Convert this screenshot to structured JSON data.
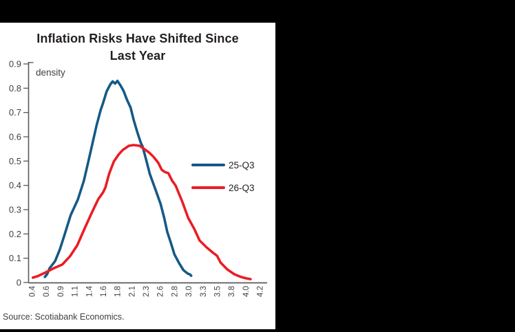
{
  "window": {
    "background_color": "#000000",
    "panel_color": "#ffffff"
  },
  "header": {
    "title_lines": [
      "Inflation Risks Have Shifted Since",
      "Last Year"
    ]
  },
  "footer": {
    "source": "Source: Scotiabank Economics."
  },
  "colors": {
    "axis": "#58595b",
    "tick_text": "#414042",
    "title_text": "#231f20",
    "source_text": "#3f4041",
    "series_blue": "#145a85",
    "series_red": "#eb1c24"
  },
  "chart_data": {
    "type": "line",
    "title": "Inflation Risks Have Shifted Since Last Year",
    "xlabel": "",
    "ylabel": "density",
    "ylim": [
      0,
      0.9
    ],
    "x_range": [
      0.4,
      4.2
    ],
    "grid": false,
    "legend_position": "center-right",
    "y_ticks": [
      "0",
      "0.1",
      "0.2",
      "0.3",
      "0.4",
      "0.5",
      "0.6",
      "0.7",
      "0.8",
      "0.9"
    ],
    "x_tick_labels": [
      "0.4",
      "0.6",
      "0.9",
      "1.1",
      "1.4",
      "1.6",
      "1.8",
      "2.1",
      "2.3",
      "2.6",
      "2.8",
      "3.0",
      "3.3",
      "3.5",
      "3.8",
      "4.0",
      "4.2"
    ],
    "series": [
      {
        "name": "25-Q3",
        "color": "#145a85",
        "points": [
          [
            0.62,
            0.023
          ],
          [
            0.66,
            0.035
          ],
          [
            0.7,
            0.059
          ],
          [
            0.79,
            0.088
          ],
          [
            0.87,
            0.136
          ],
          [
            0.94,
            0.19
          ],
          [
            1.05,
            0.277
          ],
          [
            1.17,
            0.342
          ],
          [
            1.27,
            0.419
          ],
          [
            1.34,
            0.493
          ],
          [
            1.41,
            0.569
          ],
          [
            1.48,
            0.645
          ],
          [
            1.55,
            0.71
          ],
          [
            1.59,
            0.739
          ],
          [
            1.65,
            0.787
          ],
          [
            1.71,
            0.815
          ],
          [
            1.75,
            0.828
          ],
          [
            1.79,
            0.819
          ],
          [
            1.83,
            0.83
          ],
          [
            1.88,
            0.812
          ],
          [
            1.93,
            0.79
          ],
          [
            1.99,
            0.752
          ],
          [
            2.05,
            0.72
          ],
          [
            2.1,
            0.67
          ],
          [
            2.16,
            0.62
          ],
          [
            2.22,
            0.575
          ],
          [
            2.25,
            0.56
          ],
          [
            2.31,
            0.504
          ],
          [
            2.37,
            0.447
          ],
          [
            2.47,
            0.379
          ],
          [
            2.55,
            0.323
          ],
          [
            2.61,
            0.266
          ],
          [
            2.66,
            0.209
          ],
          [
            2.72,
            0.164
          ],
          [
            2.78,
            0.116
          ],
          [
            2.86,
            0.079
          ],
          [
            2.93,
            0.051
          ],
          [
            3.0,
            0.037
          ],
          [
            3.04,
            0.033
          ],
          [
            3.06,
            0.028
          ]
        ]
      },
      {
        "name": "26-Q3",
        "color": "#eb1c24",
        "points": [
          [
            0.42,
            0.02
          ],
          [
            0.5,
            0.026
          ],
          [
            0.62,
            0.04
          ],
          [
            0.77,
            0.059
          ],
          [
            0.91,
            0.074
          ],
          [
            1.04,
            0.108
          ],
          [
            1.16,
            0.153
          ],
          [
            1.28,
            0.221
          ],
          [
            1.4,
            0.286
          ],
          [
            1.51,
            0.343
          ],
          [
            1.59,
            0.371
          ],
          [
            1.63,
            0.391
          ],
          [
            1.69,
            0.447
          ],
          [
            1.77,
            0.498
          ],
          [
            1.85,
            0.527
          ],
          [
            1.92,
            0.546
          ],
          [
            2.02,
            0.563
          ],
          [
            2.1,
            0.566
          ],
          [
            2.2,
            0.563
          ],
          [
            2.28,
            0.549
          ],
          [
            2.36,
            0.535
          ],
          [
            2.43,
            0.518
          ],
          [
            2.51,
            0.493
          ],
          [
            2.57,
            0.464
          ],
          [
            2.62,
            0.455
          ],
          [
            2.68,
            0.45
          ],
          [
            2.74,
            0.42
          ],
          [
            2.8,
            0.399
          ],
          [
            2.91,
            0.334
          ],
          [
            3.01,
            0.266
          ],
          [
            3.11,
            0.221
          ],
          [
            3.2,
            0.173
          ],
          [
            3.32,
            0.144
          ],
          [
            3.41,
            0.125
          ],
          [
            3.49,
            0.11
          ],
          [
            3.55,
            0.082
          ],
          [
            3.66,
            0.054
          ],
          [
            3.78,
            0.034
          ],
          [
            3.89,
            0.023
          ],
          [
            3.98,
            0.017
          ],
          [
            4.05,
            0.014
          ]
        ]
      }
    ]
  }
}
